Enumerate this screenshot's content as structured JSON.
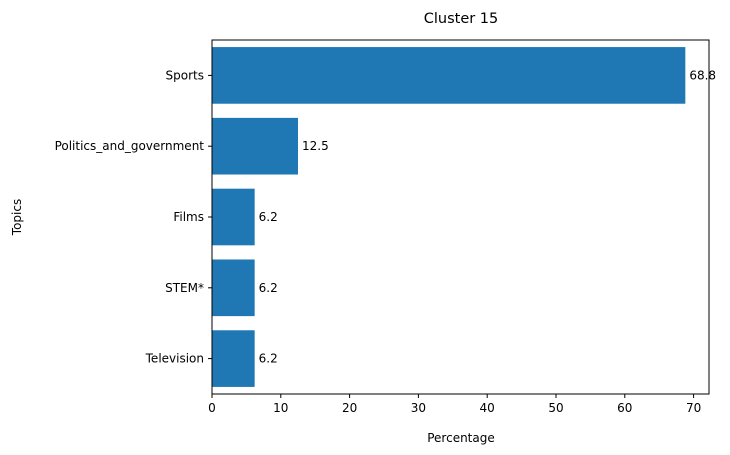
{
  "chart_data": {
    "type": "bar",
    "orientation": "horizontal",
    "title": "Cluster 15",
    "xlabel": "Percentage",
    "ylabel": "Topics",
    "categories": [
      "Sports",
      "Politics_and_government",
      "Films",
      "STEM*",
      "Television"
    ],
    "values": [
      68.8,
      12.5,
      6.2,
      6.2,
      6.2
    ],
    "data_labels": [
      "68.8",
      "12.5",
      "6.2",
      "6.2",
      "6.2"
    ],
    "xlim": [
      0,
      72.24
    ],
    "xticks": [
      0,
      10,
      20,
      30,
      40,
      50,
      60,
      70
    ],
    "grid": false,
    "bar_color": "#1f77b4"
  }
}
